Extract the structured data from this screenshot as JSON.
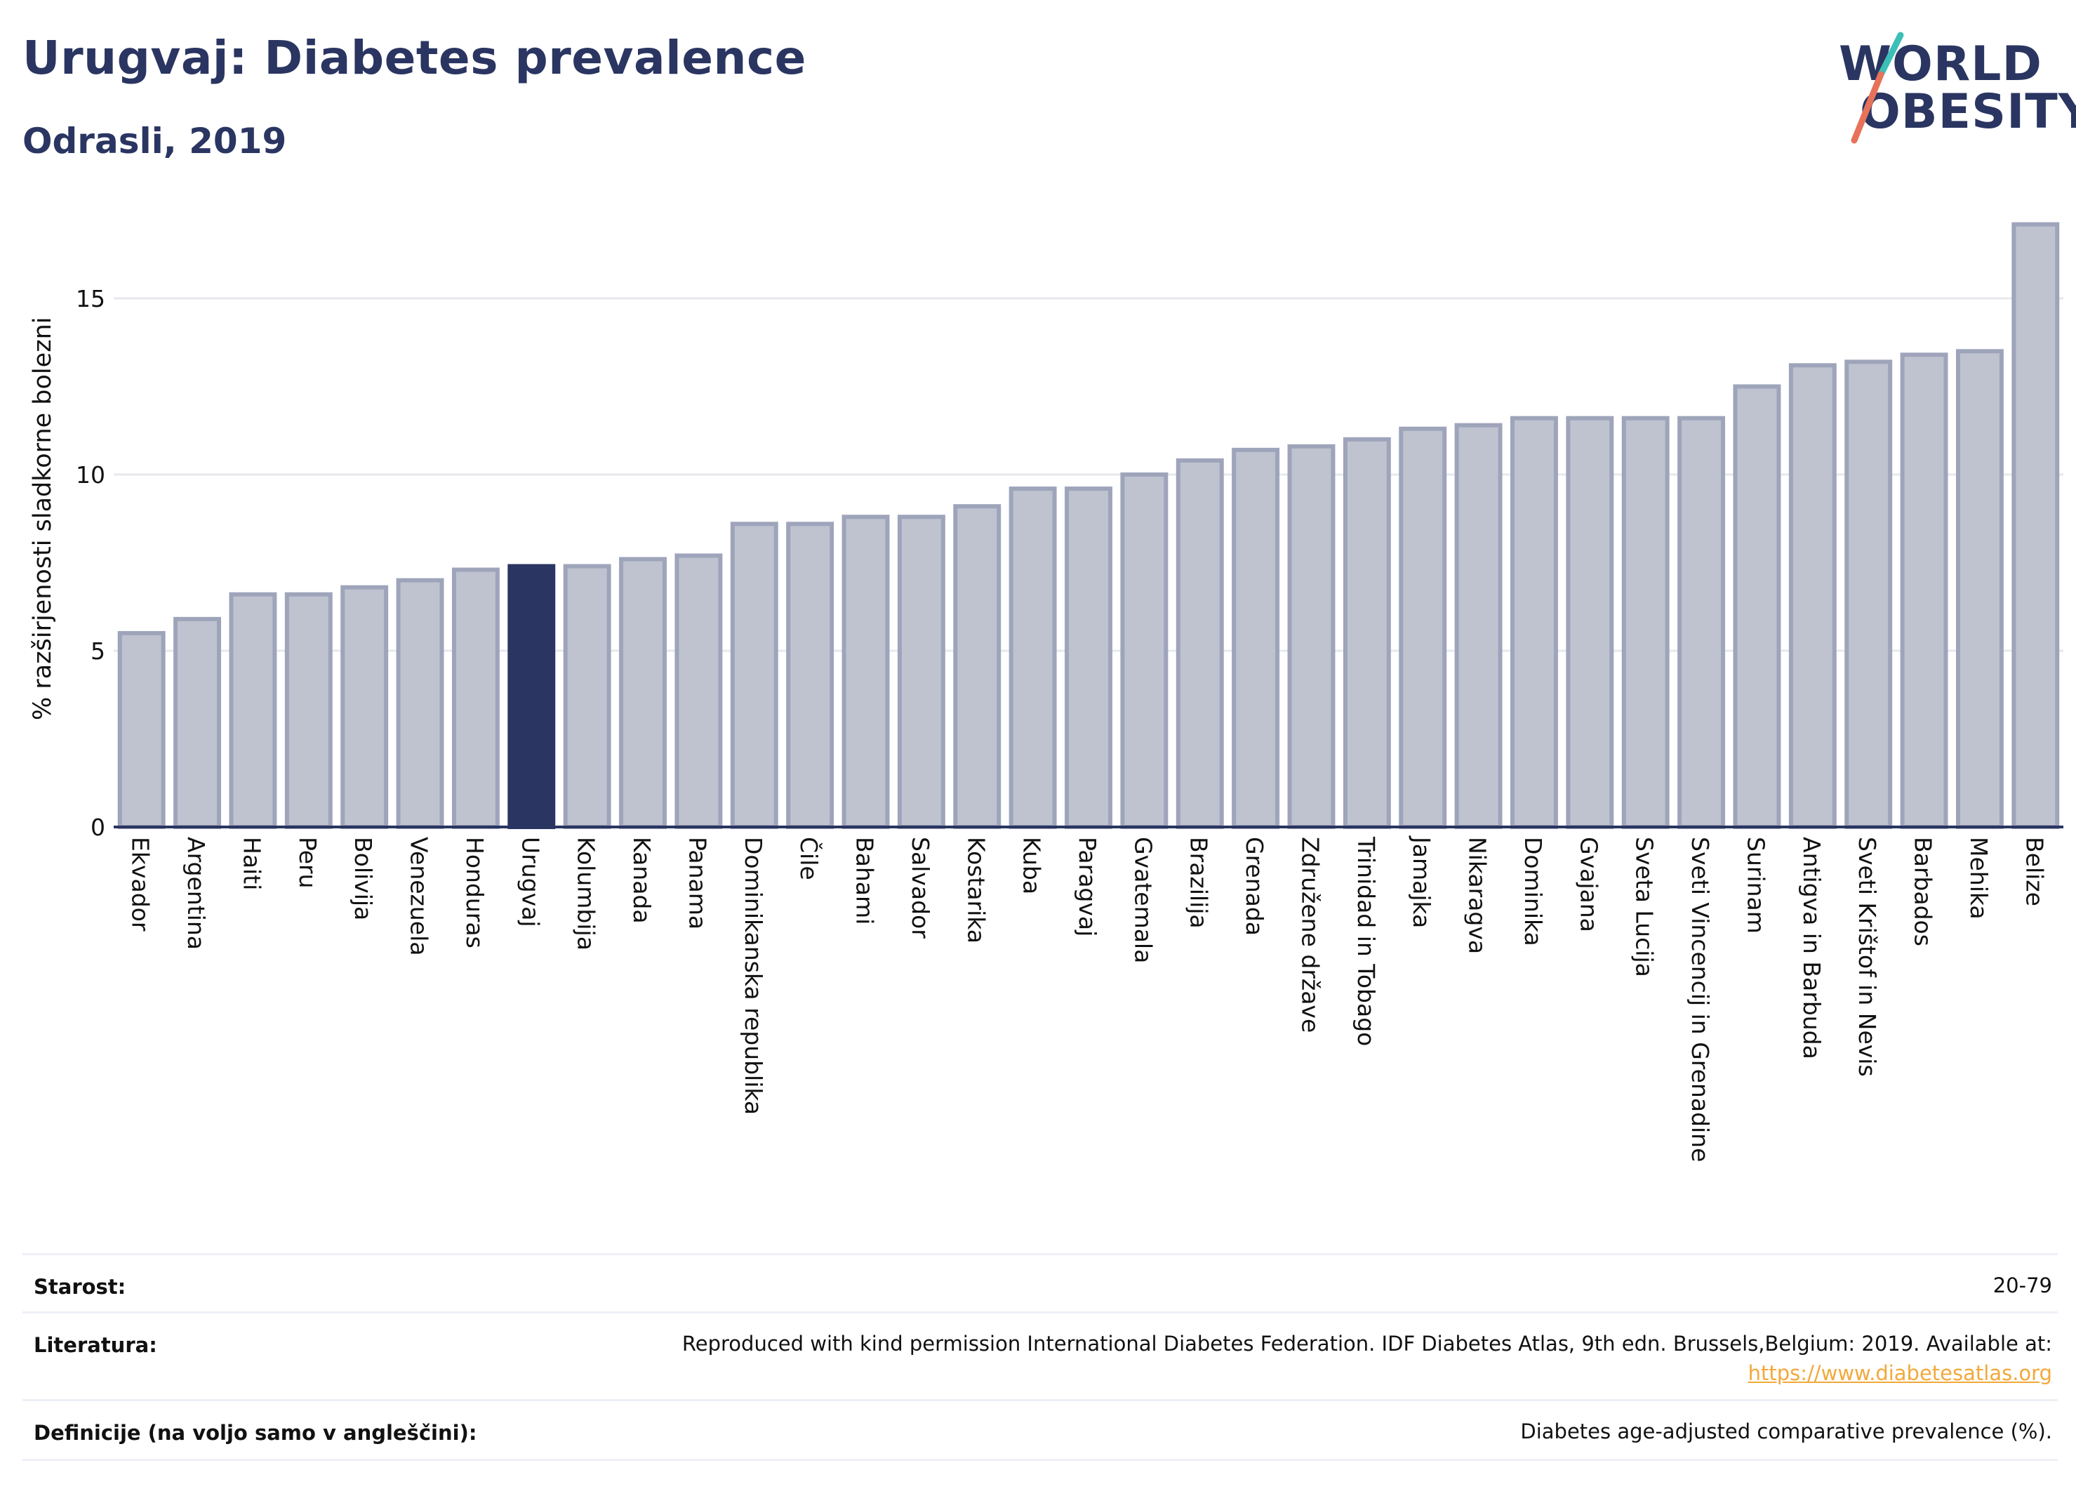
{
  "header": {
    "title": "Urugvaj: Diabetes prevalence",
    "subtitle": "Odrasli, 2019"
  },
  "logo": {
    "line1": "WORLD",
    "line2": "OBESITY",
    "accent_colors": [
      "#3bbfb7",
      "#e8715a"
    ]
  },
  "colors": {
    "bar": "#bfc3d0",
    "bar_stroke": "#9ea4ba",
    "highlight": "#2a3561",
    "axis": "#2a3561",
    "grid": "#e6e8ee",
    "link": "#f2a93b"
  },
  "chart_data": {
    "type": "bar",
    "title": "",
    "xlabel": "",
    "ylabel": "% razširjenosti sladkorne bolezni",
    "ylim": [
      0,
      17.5
    ],
    "yticks": [
      0,
      5,
      10,
      15
    ],
    "grid": true,
    "highlight": "Urugvaj",
    "categories": [
      "Ekvador",
      "Argentina",
      "Haiti",
      "Peru",
      "Bolivija",
      "Venezuela",
      "Honduras",
      "Urugvaj",
      "Kolumbija",
      "Kanada",
      "Panama",
      "Dominikanska republika",
      "Čile",
      "Bahami",
      "Salvador",
      "Kostarika",
      "Kuba",
      "Paragvaj",
      "Gvatemala",
      "Brazilija",
      "Grenada",
      "Združene države",
      "Trinidad in Tobago",
      "Jamajka",
      "Nikaragva",
      "Dominika",
      "Gvajana",
      "Sveta Lucija",
      "Sveti Vincencij in Grenadine",
      "Surinam",
      "Antigva in Barbuda",
      "Sveti Krištof in Nevis",
      "Barbados",
      "Mehika",
      "Belize"
    ],
    "values": [
      5.5,
      5.9,
      6.6,
      6.6,
      6.8,
      7.0,
      7.3,
      7.4,
      7.4,
      7.6,
      7.7,
      8.6,
      8.6,
      8.8,
      8.8,
      9.1,
      9.6,
      9.6,
      10.0,
      10.4,
      10.7,
      10.8,
      11.0,
      11.3,
      11.4,
      11.6,
      11.6,
      11.6,
      11.6,
      12.5,
      13.1,
      13.2,
      13.4,
      13.5,
      17.1
    ]
  },
  "meta": {
    "age_label": "Starost:",
    "age_value": "20-79",
    "source_label": "Literatura:",
    "source_text": "Reproduced with kind permission International Diabetes Federation. IDF Diabetes Atlas, 9th edn. Brussels,Belgium: 2019. Available at:",
    "source_link": "https://www.diabetesatlas.org",
    "definition_label": "Definicije (na voljo samo v angleščini):",
    "definition_value": "Diabetes age-adjusted comparative prevalence (%)."
  }
}
